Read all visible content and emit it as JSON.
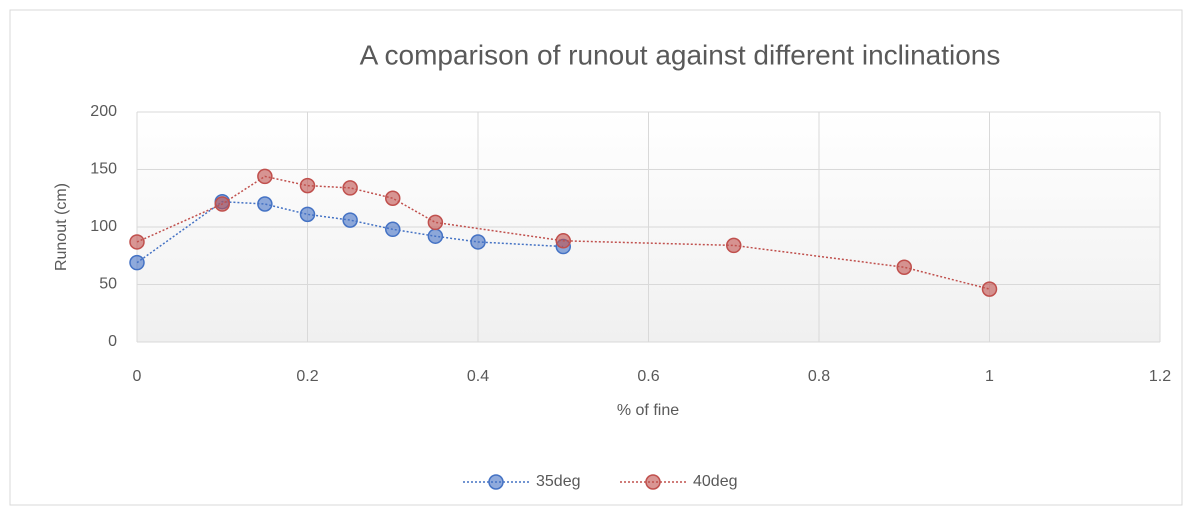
{
  "chart_data": {
    "type": "scatter-line",
    "title": "A comparison of runout against different inclinations",
    "xlabel": "% of fine",
    "ylabel": "Runout (cm)",
    "xlim": [
      0,
      1.2
    ],
    "xticks": [
      0,
      0.2,
      0.4,
      0.6,
      0.8,
      1,
      1.2
    ],
    "ylim": [
      0,
      200
    ],
    "yticks": [
      0,
      50,
      100,
      150,
      200
    ],
    "grid": true,
    "legend": "bottom",
    "series": [
      {
        "name": "35deg",
        "color": "#4472c4",
        "x": [
          0,
          0.1,
          0.15,
          0.2,
          0.25,
          0.3,
          0.35,
          0.4,
          0.5
        ],
        "values": [
          69,
          122,
          120,
          111,
          106,
          98,
          92,
          87,
          83
        ]
      },
      {
        "name": "40deg",
        "color": "#c0504d",
        "x": [
          0,
          0.1,
          0.15,
          0.2,
          0.25,
          0.3,
          0.35,
          0.5,
          0.7,
          0.9,
          1
        ],
        "values": [
          87,
          120,
          144,
          136,
          134,
          125,
          104,
          88,
          84,
          65,
          46
        ]
      }
    ]
  }
}
